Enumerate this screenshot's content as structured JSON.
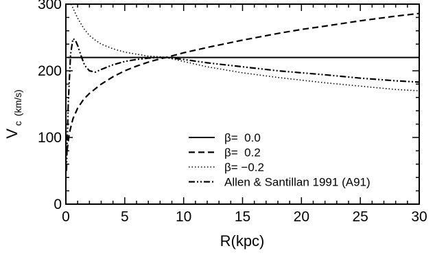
{
  "chart_data": {
    "type": "line",
    "title": "",
    "xlabel": "R(kpc)",
    "ylabel_main": "V",
    "ylabel_sub": "c",
    "ylabel_unit": "(km/s)",
    "xlim": [
      0,
      30
    ],
    "ylim": [
      0,
      300
    ],
    "xticks": [
      0,
      5,
      10,
      15,
      20,
      25,
      30
    ],
    "yticks": [
      0,
      100,
      200,
      300
    ],
    "xtick_labels": [
      "0",
      "5",
      "10",
      "15",
      "20",
      "25",
      "30"
    ],
    "ytick_labels": [
      "0",
      "100",
      "200",
      "300"
    ],
    "grid": false,
    "legend_position": "bottom-center",
    "series": [
      {
        "name": "β=  0.0",
        "style": "solid",
        "color": "#000000",
        "x": [
          0.1,
          30
        ],
        "y": [
          220,
          220
        ]
      },
      {
        "name": "β=  0.2",
        "style": "dashed",
        "color": "#000000",
        "x": [
          0.1,
          0.3,
          0.6,
          1.0,
          1.5,
          2.0,
          3.0,
          4.0,
          5.0,
          6.0,
          7.0,
          8.0,
          8.5,
          10.0,
          12.0,
          15.0,
          18.0,
          20.0,
          22.0,
          25.0,
          28.0,
          30.0
        ],
        "y": [
          80,
          107,
          128,
          144,
          157,
          166,
          180,
          191,
          200,
          207,
          213,
          218,
          220,
          227,
          235,
          246,
          256,
          262,
          267,
          275,
          282,
          286
        ]
      },
      {
        "name": "β= −0.2",
        "style": "dotted",
        "color": "#000000",
        "x": [
          0.45,
          1.0,
          1.5,
          2.0,
          2.5,
          3.0,
          4.0,
          5.0,
          6.0,
          7.0,
          8.0,
          8.5,
          10.0,
          12.0,
          15.0,
          18.0,
          20.0,
          22.0,
          25.0,
          28.0,
          30.0
        ],
        "y": [
          300,
          279,
          264,
          253,
          246,
          240,
          233,
          228,
          225,
          222,
          221,
          220,
          214,
          206,
          197,
          190,
          186,
          182,
          177,
          172,
          170
        ]
      },
      {
        "name": "Allen & Santillan 1991 (A91)",
        "style": "dashdotdot",
        "color": "#000000",
        "x": [
          0.05,
          0.2,
          0.4,
          0.6,
          0.8,
          1.0,
          1.3,
          1.6,
          2.0,
          2.5,
          3.0,
          4.0,
          5.0,
          6.0,
          7.0,
          8.0,
          8.5,
          10.0,
          12.0,
          15.0,
          18.0,
          20.0,
          22.0,
          25.0,
          28.0,
          30.0
        ],
        "y": [
          50,
          150,
          225,
          248,
          246,
          238,
          222,
          208,
          200,
          198,
          202,
          209,
          214,
          217,
          219,
          220,
          220,
          217,
          212,
          206,
          200,
          197,
          194,
          189,
          185,
          183
        ]
      }
    ]
  }
}
